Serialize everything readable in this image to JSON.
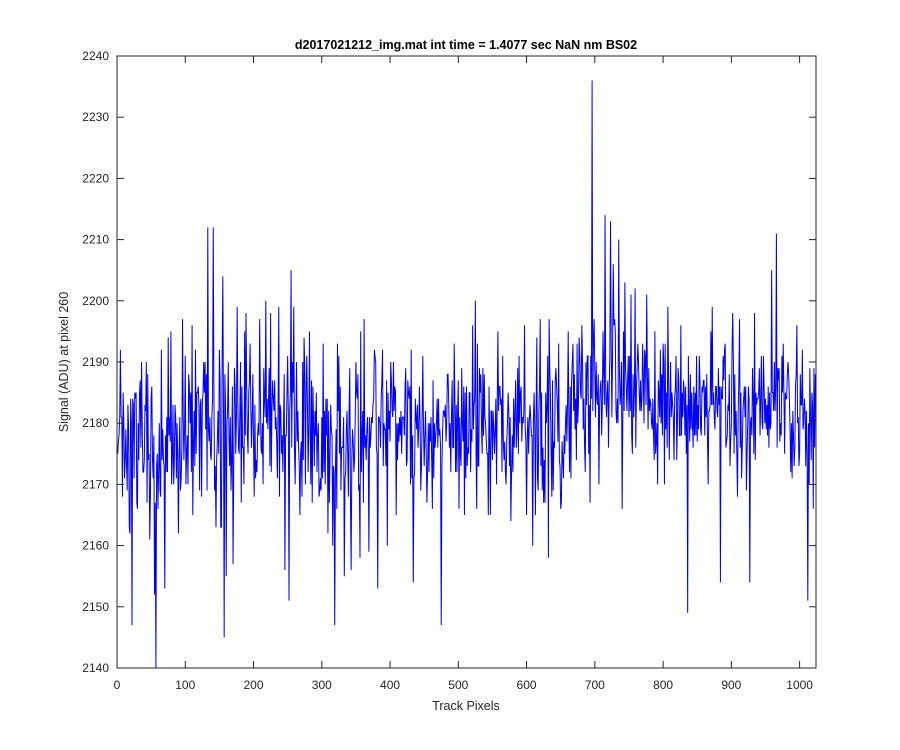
{
  "chart_data": {
    "type": "line",
    "title": "d2017021212_img.mat int time = 1.4077 sec  NaN nm BS02",
    "xlabel": "Track Pixels",
    "ylabel": "Signal (ADU) at pixel 260",
    "xlim": [
      0,
      1024
    ],
    "ylim": [
      2140,
      2240
    ],
    "xticks": [
      0,
      100,
      200,
      300,
      400,
      500,
      600,
      700,
      800,
      900,
      1000
    ],
    "yticks": [
      2140,
      2150,
      2160,
      2170,
      2180,
      2190,
      2200,
      2210,
      2220,
      2230,
      2240
    ],
    "grid": false,
    "legend": false,
    "series": [
      {
        "color": "#0000ff",
        "x_start": 1,
        "x_step": 1,
        "profile_x": [
          1,
          20,
          40,
          57,
          80,
          100,
          120,
          133,
          141,
          160,
          180,
          200,
          220,
          252,
          280,
          300,
          320,
          340,
          360,
          380,
          400,
          420,
          440,
          460,
          475,
          500,
          520,
          540,
          560,
          580,
          600,
          620,
          640,
          660,
          680,
          696,
          710,
          720,
          740,
          760,
          780,
          800,
          820,
          836,
          860,
          880,
          900,
          920,
          940,
          966,
          980,
          1000,
          1012,
          1024
        ],
        "profile_mean": [
          2178,
          2176,
          2175,
          2174,
          2177,
          2179,
          2180,
          2184,
          2183,
          2178,
          2180,
          2181,
          2180,
          2182,
          2180,
          2179,
          2178,
          2177,
          2179,
          2180,
          2181,
          2180,
          2179,
          2179,
          2178,
          2180,
          2181,
          2182,
          2180,
          2179,
          2181,
          2180,
          2181,
          2182,
          2183,
          2186,
          2186,
          2187,
          2185,
          2184,
          2183,
          2184,
          2182,
          2181,
          2183,
          2184,
          2183,
          2181,
          2182,
          2184,
          2183,
          2180,
          2179,
          2180
        ],
        "profile_spread": [
          6,
          8,
          8,
          8,
          7,
          6,
          7,
          8,
          8,
          8,
          7,
          7,
          7,
          7,
          7,
          7,
          7,
          7,
          7,
          7,
          7,
          7,
          7,
          7,
          7,
          7,
          7,
          7,
          7,
          7,
          7,
          7,
          7,
          7,
          7,
          7,
          7,
          7,
          7,
          7,
          7,
          7,
          7,
          7,
          7,
          7,
          7,
          7,
          7,
          7,
          7,
          7,
          7,
          7
        ],
        "points": [
          [
            5,
            2192
          ],
          [
            8,
            2168
          ],
          [
            16,
            2183
          ],
          [
            20,
            2184
          ],
          [
            22,
            2147
          ],
          [
            30,
            2166
          ],
          [
            36,
            2190
          ],
          [
            43,
            2190
          ],
          [
            48,
            2161
          ],
          [
            55,
            2152
          ],
          [
            57,
            2140
          ],
          [
            65,
            2192
          ],
          [
            70,
            2153
          ],
          [
            75,
            2194
          ],
          [
            79,
            2195
          ],
          [
            84,
            2174
          ],
          [
            90,
            2162
          ],
          [
            96,
            2197
          ],
          [
            100,
            2191
          ],
          [
            104,
            2170
          ],
          [
            110,
            2196
          ],
          [
            115,
            2192
          ],
          [
            121,
            2169
          ],
          [
            127,
            2190
          ],
          [
            133,
            2212
          ],
          [
            137,
            2175
          ],
          [
            141,
            2212
          ],
          [
            145,
            2163
          ],
          [
            151,
            2187
          ],
          [
            155,
            2204
          ],
          [
            157,
            2145
          ],
          [
            160,
            2155
          ],
          [
            165,
            2173
          ],
          [
            170,
            2157
          ],
          [
            176,
            2199
          ],
          [
            182,
            2167
          ],
          [
            189,
            2198
          ],
          [
            195,
            2193
          ],
          [
            201,
            2168
          ],
          [
            209,
            2197
          ],
          [
            213,
            2180
          ],
          [
            218,
            2200
          ],
          [
            225,
            2198
          ],
          [
            231,
            2187
          ],
          [
            237,
            2199
          ],
          [
            243,
            2172
          ],
          [
            246,
            2156
          ],
          [
            249,
            2185
          ],
          [
            252,
            2151
          ],
          [
            255,
            2205
          ],
          [
            262,
            2180
          ],
          [
            268,
            2165
          ],
          [
            275,
            2190
          ],
          [
            282,
            2195
          ],
          [
            289,
            2173
          ],
          [
            296,
            2168
          ],
          [
            302,
            2193
          ],
          [
            309,
            2162
          ],
          [
            316,
            2160
          ],
          [
            319,
            2147
          ],
          [
            327,
            2186
          ],
          [
            333,
            2155
          ],
          [
            339,
            2168
          ],
          [
            343,
            2156
          ],
          [
            350,
            2190
          ],
          [
            356,
            2158
          ],
          [
            362,
            2197
          ],
          [
            369,
            2159
          ],
          [
            375,
            2183
          ],
          [
            382,
            2153
          ],
          [
            389,
            2192
          ],
          [
            396,
            2160
          ],
          [
            402,
            2187
          ],
          [
            409,
            2165
          ],
          [
            415,
            2178
          ],
          [
            422,
            2186
          ],
          [
            428,
            2184
          ],
          [
            434,
            2154
          ],
          [
            441,
            2176
          ],
          [
            448,
            2191
          ],
          [
            455,
            2172
          ],
          [
            462,
            2166
          ],
          [
            468,
            2180
          ],
          [
            475,
            2147
          ],
          [
            481,
            2183
          ],
          [
            488,
            2180
          ],
          [
            494,
            2193
          ],
          [
            501,
            2166
          ],
          [
            508,
            2186
          ],
          [
            514,
            2176
          ],
          [
            521,
            2196
          ],
          [
            527,
            2166
          ],
          [
            534,
            2179
          ],
          [
            540,
            2180
          ],
          [
            547,
            2165
          ],
          [
            553,
            2175
          ],
          [
            558,
            2195
          ],
          [
            564,
            2172
          ],
          [
            570,
            2170
          ],
          [
            577,
            2164
          ],
          [
            583,
            2182
          ],
          [
            590,
            2180
          ],
          [
            597,
            2196
          ],
          [
            603,
            2175
          ],
          [
            609,
            2160
          ],
          [
            615,
            2194
          ],
          [
            620,
            2197
          ],
          [
            628,
            2185
          ],
          [
            632,
            2158
          ],
          [
            637,
            2168
          ],
          [
            643,
            2189
          ],
          [
            650,
            2166
          ],
          [
            656,
            2175
          ],
          [
            662,
            2180
          ],
          [
            668,
            2193
          ],
          [
            675,
            2180
          ],
          [
            681,
            2196
          ],
          [
            687,
            2190
          ],
          [
            693,
            2167
          ],
          [
            696,
            2236
          ],
          [
            700,
            2188
          ],
          [
            706,
            2170
          ],
          [
            712,
            2195
          ],
          [
            715,
            2214
          ],
          [
            719,
            2187
          ],
          [
            723,
            2213
          ],
          [
            727,
            2206
          ],
          [
            731,
            2182
          ],
          [
            735,
            2210
          ],
          [
            740,
            2166
          ],
          [
            744,
            2203
          ],
          [
            749,
            2191
          ],
          [
            754,
            2178
          ],
          [
            759,
            2202
          ],
          [
            765,
            2185
          ],
          [
            770,
            2193
          ],
          [
            776,
            2201
          ],
          [
            782,
            2183
          ],
          [
            788,
            2195
          ],
          [
            795,
            2181
          ],
          [
            801,
            2190
          ],
          [
            807,
            2199
          ],
          [
            813,
            2185
          ],
          [
            819,
            2191
          ],
          [
            826,
            2196
          ],
          [
            832,
            2178
          ],
          [
            836,
            2149
          ],
          [
            840,
            2188
          ],
          [
            847,
            2185
          ],
          [
            853,
            2191
          ],
          [
            860,
            2187
          ],
          [
            866,
            2170
          ],
          [
            872,
            2199
          ],
          [
            878,
            2186
          ],
          [
            884,
            2154
          ],
          [
            890,
            2192
          ],
          [
            896,
            2182
          ],
          [
            902,
            2198
          ],
          [
            909,
            2168
          ],
          [
            915,
            2171
          ],
          [
            921,
            2186
          ],
          [
            927,
            2154
          ],
          [
            934,
            2198
          ],
          [
            940,
            2185
          ],
          [
            946,
            2179
          ],
          [
            952,
            2183
          ],
          [
            959,
            2205
          ],
          [
            963,
            2190
          ],
          [
            966,
            2211
          ],
          [
            972,
            2180
          ],
          [
            978,
            2175
          ],
          [
            984,
            2188
          ],
          [
            990,
            2182
          ],
          [
            996,
            2196
          ],
          [
            1002,
            2183
          ],
          [
            1008,
            2182
          ],
          [
            1012,
            2151
          ],
          [
            1016,
            2181
          ],
          [
            1020,
            2166
          ],
          [
            1023,
            2188
          ]
        ]
      }
    ]
  }
}
